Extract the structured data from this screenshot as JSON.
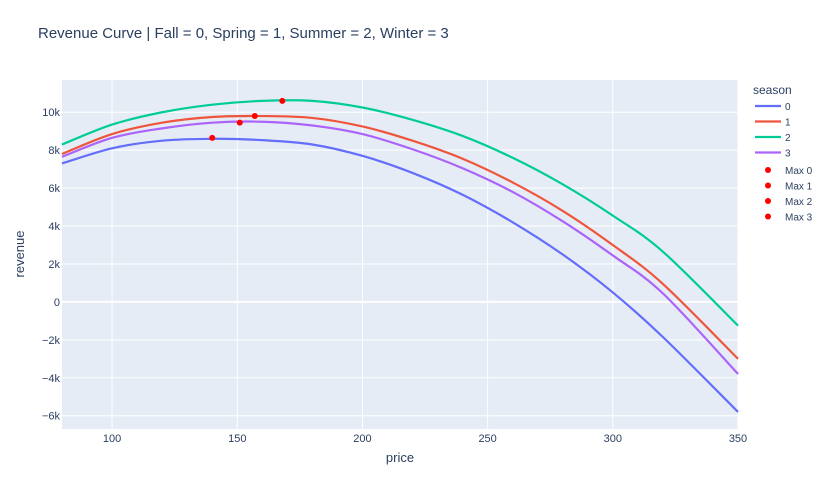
{
  "chart_data": {
    "type": "line",
    "title": "Revenue Curve | Fall = 0, Spring = 1, Summer = 2, Winter = 3",
    "xlabel": "price",
    "ylabel": "revenue",
    "xlim": [
      80,
      350
    ],
    "ylim": [
      -6700,
      11700
    ],
    "xticks": [
      100,
      150,
      200,
      250,
      300,
      350
    ],
    "xtick_labels": [
      "100",
      "150",
      "200",
      "250",
      "300",
      "350"
    ],
    "yticks": [
      -6000,
      -4000,
      -2000,
      0,
      2000,
      4000,
      6000,
      8000,
      10000
    ],
    "ytick_labels": [
      "−6k",
      "−4k",
      "−2k",
      "0",
      "2k",
      "4k",
      "6k",
      "8k",
      "10k"
    ],
    "grid": true,
    "legend": {
      "title": "season",
      "placement": "right"
    },
    "plot_background": "#e5ecf6",
    "series": [
      {
        "name": "0",
        "color": "#636efa",
        "x": [
          80,
          100,
          120,
          140,
          160,
          180,
          200,
          220,
          240,
          260,
          280,
          300,
          320,
          350
        ],
        "y": [
          7300,
          8100,
          8500,
          8600,
          8530,
          8300,
          7700,
          6800,
          5650,
          4200,
          2500,
          500,
          -1850,
          -5800
        ]
      },
      {
        "name": "1",
        "color": "#ef553b",
        "x": [
          80,
          100,
          120,
          140,
          160,
          180,
          200,
          220,
          240,
          260,
          280,
          300,
          320,
          350
        ],
        "y": [
          7800,
          8850,
          9450,
          9750,
          9800,
          9700,
          9250,
          8500,
          7550,
          6300,
          4800,
          3000,
          950,
          -3000
        ]
      },
      {
        "name": "2",
        "color": "#00cc96",
        "x": [
          80,
          100,
          120,
          140,
          160,
          180,
          200,
          220,
          240,
          260,
          280,
          300,
          320,
          350
        ],
        "y": [
          8300,
          9350,
          10000,
          10400,
          10600,
          10600,
          10250,
          9600,
          8750,
          7600,
          6200,
          4550,
          2650,
          -1250
        ]
      },
      {
        "name": "3",
        "color": "#ab63fa",
        "x": [
          80,
          100,
          120,
          140,
          160,
          180,
          200,
          220,
          240,
          260,
          280,
          300,
          320,
          350
        ],
        "y": [
          7650,
          8650,
          9150,
          9450,
          9500,
          9300,
          8850,
          8050,
          7050,
          5800,
          4250,
          2450,
          450,
          -3800
        ]
      }
    ],
    "maxima": [
      {
        "name": "Max 0",
        "color": "#ff0000",
        "x": 140,
        "y": 8650
      },
      {
        "name": "Max 1",
        "color": "#ff0000",
        "x": 157,
        "y": 9800
      },
      {
        "name": "Max 2",
        "color": "#ff0000",
        "x": 168,
        "y": 10600
      },
      {
        "name": "Max 3",
        "color": "#ff0000",
        "x": 151,
        "y": 9450
      }
    ]
  }
}
